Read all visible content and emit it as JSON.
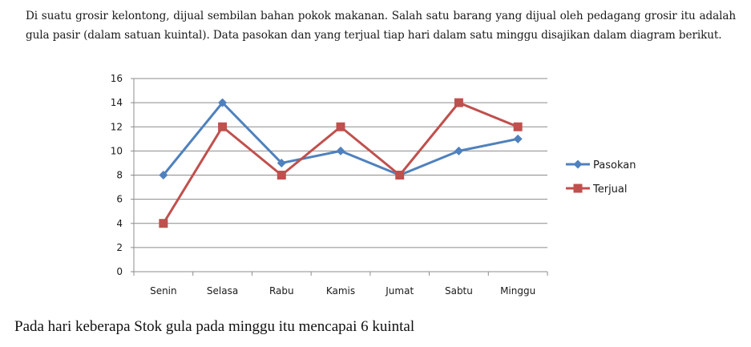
{
  "intro_text": "Di suatu grosir kelontong, dijual sembilan bahan pokok makanan. Salah satu barang yang dijual oleh pedagang grosir itu adalah gula pasir (dalam satuan kuintal). Data pasokan dan yang terjual tiap hari dalam satu minggu disajikan dalam diagram berikut.",
  "question_text": "Pada hari keberapa Stok gula pada minggu itu mencapai 6 kuintal",
  "chart_data": {
    "type": "line",
    "categories": [
      "Senin",
      "Selasa",
      "Rabu",
      "Kamis",
      "Jumat",
      "Sabtu",
      "Minggu"
    ],
    "series": [
      {
        "name": "Pasokan",
        "values": [
          8,
          14,
          9,
          10,
          8,
          10,
          11
        ],
        "color": "#4f81bd",
        "marker": "diamond"
      },
      {
        "name": "Terjual",
        "values": [
          4,
          12,
          8,
          12,
          8,
          14,
          12
        ],
        "color": "#c0504d",
        "marker": "square"
      }
    ],
    "yticks": [
      0,
      2,
      4,
      6,
      8,
      10,
      12,
      14,
      16
    ],
    "ylim": [
      0,
      16
    ],
    "grid": true,
    "legend_position": "right"
  }
}
